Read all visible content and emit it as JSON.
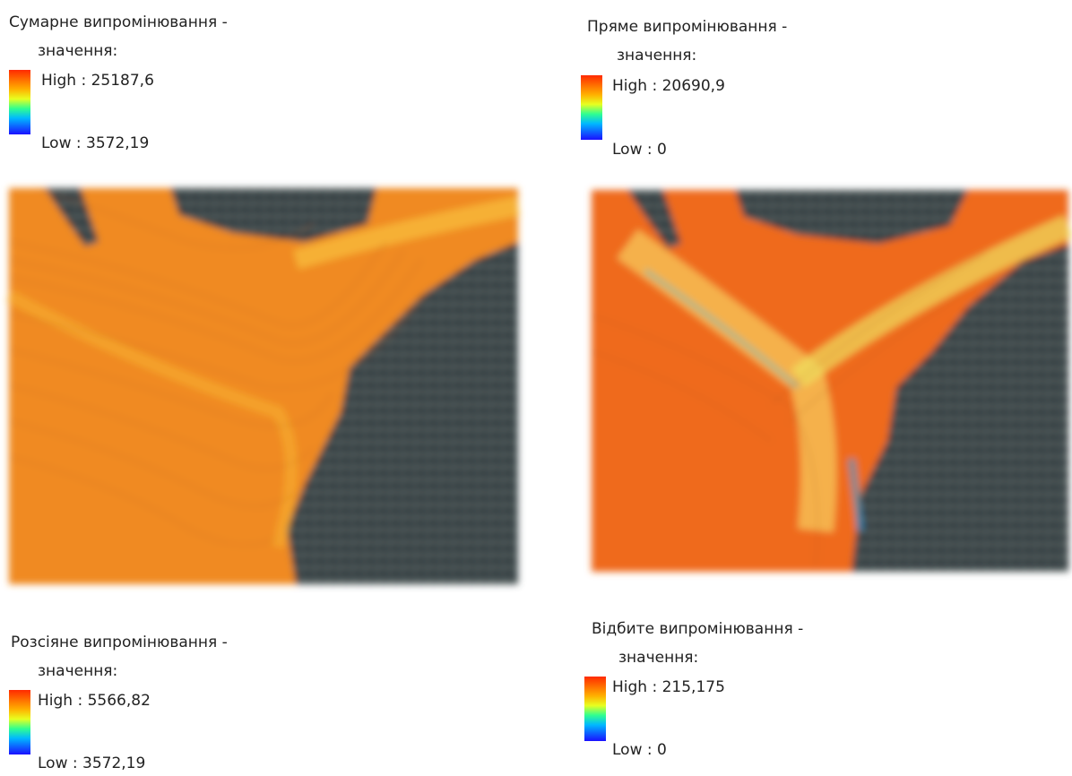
{
  "panels": [
    {
      "title": "Сумарне випромінювання -",
      "subtitle": "значення:",
      "high": "High : 25187,6",
      "low": "Low : 3572,19"
    },
    {
      "title": "Пряме випромінювання -",
      "subtitle": "значення:",
      "high": "High : 20690,9",
      "low": "Low : 0"
    },
    {
      "title": "Розсіяне випромінювання -",
      "subtitle": "значення:",
      "high": "High : 5566,82",
      "low": "Low : 3572,19"
    },
    {
      "title": "Відбите випромінювання -",
      "subtitle": "значення:",
      "high": "High : 215,175",
      "low": "Low : 0"
    }
  ]
}
